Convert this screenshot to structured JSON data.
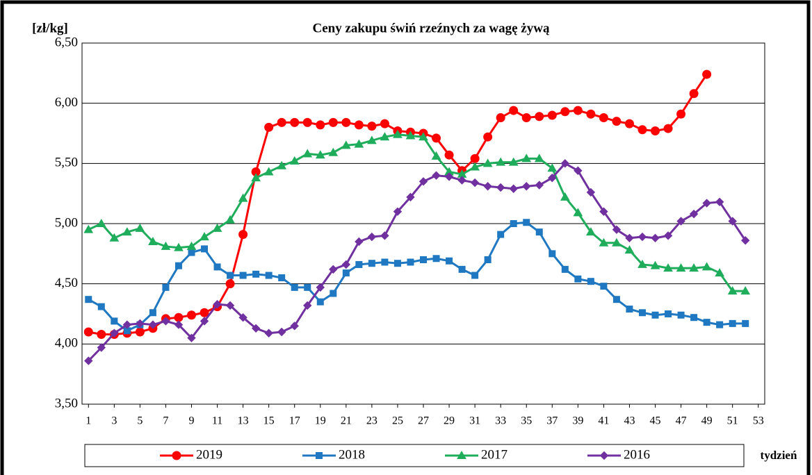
{
  "chart_data": {
    "type": "line",
    "title": "Ceny zakupu świń rzeźnych  za wagę żywą",
    "y_label": "[zł/kg]",
    "x_label": "tydzień",
    "x": [
      1,
      2,
      3,
      4,
      5,
      6,
      7,
      8,
      9,
      10,
      11,
      12,
      13,
      14,
      15,
      16,
      17,
      18,
      19,
      20,
      21,
      22,
      23,
      24,
      25,
      26,
      27,
      28,
      29,
      30,
      31,
      32,
      33,
      34,
      35,
      36,
      37,
      38,
      39,
      40,
      41,
      42,
      43,
      44,
      45,
      46,
      47,
      48,
      49,
      50,
      51,
      52
    ],
    "xlim": [
      0.5,
      53.5
    ],
    "xticks": [
      1,
      3,
      5,
      7,
      9,
      11,
      13,
      15,
      17,
      19,
      21,
      23,
      25,
      27,
      29,
      31,
      33,
      35,
      37,
      39,
      41,
      43,
      45,
      47,
      49,
      51,
      53
    ],
    "ylim": [
      3.5,
      6.5
    ],
    "yticks": [
      {
        "value": 3.5,
        "label": "3,50"
      },
      {
        "value": 4.0,
        "label": "4,00"
      },
      {
        "value": 4.5,
        "label": "4,50"
      },
      {
        "value": 5.0,
        "label": "5,00"
      },
      {
        "value": 5.5,
        "label": "5,50"
      },
      {
        "value": 6.0,
        "label": "6,00"
      },
      {
        "value": 6.5,
        "label": "6,50"
      }
    ],
    "grid": true,
    "legend": "bottom",
    "series": [
      {
        "name": "2019",
        "color": "#ff0000",
        "marker": "circle",
        "values": [
          4.1,
          4.08,
          4.08,
          4.09,
          4.1,
          4.13,
          4.21,
          4.22,
          4.24,
          4.26,
          4.31,
          4.5,
          4.91,
          5.43,
          5.8,
          5.84,
          5.84,
          5.84,
          5.82,
          5.84,
          5.84,
          5.82,
          5.81,
          5.83,
          5.77,
          5.76,
          5.75,
          5.71,
          5.57,
          5.44,
          5.54,
          5.72,
          5.88,
          5.94,
          5.88,
          5.89,
          5.9,
          5.93,
          5.94,
          5.91,
          5.88,
          5.85,
          5.83,
          5.78,
          5.77,
          5.79,
          5.91,
          6.08,
          6.24,
          null,
          null,
          null
        ]
      },
      {
        "name": "2018",
        "color": "#1f78c1",
        "marker": "square",
        "values": [
          4.37,
          4.31,
          4.19,
          4.11,
          4.16,
          4.26,
          4.47,
          4.65,
          4.76,
          4.79,
          4.64,
          4.57,
          4.57,
          4.58,
          4.57,
          4.55,
          4.47,
          4.47,
          4.35,
          4.42,
          4.59,
          4.66,
          4.67,
          4.68,
          4.67,
          4.68,
          4.7,
          4.71,
          4.69,
          4.62,
          4.57,
          4.7,
          4.91,
          5.0,
          5.01,
          4.93,
          4.75,
          4.62,
          4.54,
          4.52,
          4.48,
          4.37,
          4.29,
          4.26,
          4.24,
          4.25,
          4.24,
          4.22,
          4.18,
          4.16,
          4.17,
          4.17
        ]
      },
      {
        "name": "2017",
        "color": "#1fad5c",
        "marker": "triangle",
        "values": [
          4.95,
          5.0,
          4.88,
          4.93,
          4.96,
          4.85,
          4.81,
          4.8,
          4.81,
          4.89,
          4.96,
          5.03,
          5.21,
          5.38,
          5.43,
          5.48,
          5.52,
          5.58,
          5.57,
          5.59,
          5.65,
          5.66,
          5.69,
          5.72,
          5.74,
          5.73,
          5.72,
          5.56,
          5.43,
          5.41,
          5.47,
          5.5,
          5.51,
          5.51,
          5.54,
          5.54,
          5.46,
          5.22,
          5.09,
          4.93,
          4.84,
          4.84,
          4.78,
          4.66,
          4.65,
          4.63,
          4.63,
          4.63,
          4.64,
          4.59,
          4.44,
          4.44
        ]
      },
      {
        "name": "2016",
        "color": "#7030a0",
        "marker": "diamond",
        "values": [
          3.86,
          3.97,
          4.09,
          4.16,
          4.17,
          4.16,
          4.19,
          4.16,
          4.05,
          4.19,
          4.33,
          4.32,
          4.22,
          4.13,
          4.09,
          4.1,
          4.15,
          4.32,
          4.47,
          4.62,
          4.66,
          4.85,
          4.89,
          4.9,
          5.1,
          5.22,
          5.35,
          5.4,
          5.39,
          5.36,
          5.34,
          5.31,
          5.3,
          5.29,
          5.31,
          5.32,
          5.38,
          5.5,
          5.44,
          5.26,
          5.1,
          4.95,
          4.88,
          4.89,
          4.88,
          4.9,
          5.02,
          5.08,
          5.17,
          5.18,
          5.02,
          4.86
        ]
      }
    ]
  }
}
